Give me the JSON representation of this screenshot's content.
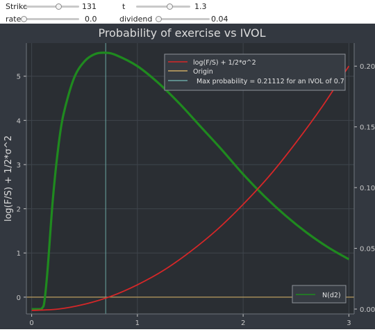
{
  "controls": {
    "strike": {
      "label": "Strike",
      "value": "131",
      "fraction": 0.62
    },
    "t": {
      "label": "t",
      "value": "1.3",
      "fraction": 0.62
    },
    "rate": {
      "label": "rate",
      "value": "0.0",
      "fraction": 0.0
    },
    "dividend": {
      "label": "dividend",
      "value": "0.04",
      "fraction": 0.05
    }
  },
  "chart_data": {
    "type": "line",
    "title": "Probability of exercise vs IVOL",
    "ylabel": "log(F/S) + 1/2*σ^2",
    "xlim": [
      -0.05,
      3.05
    ],
    "ylim": [
      -0.38,
      5.75
    ],
    "y2lim": [
      -0.004,
      0.219
    ],
    "xticks": [
      {
        "v": 0,
        "label": "0"
      },
      {
        "v": 1,
        "label": "1"
      },
      {
        "v": 2,
        "label": "2"
      },
      {
        "v": 3,
        "label": "3"
      }
    ],
    "yticks": [
      {
        "v": 0,
        "label": "0"
      },
      {
        "v": 1,
        "label": "1"
      },
      {
        "v": 2,
        "label": "2"
      },
      {
        "v": 3,
        "label": "3"
      },
      {
        "v": 4,
        "label": "4"
      },
      {
        "v": 5,
        "label": "5"
      }
    ],
    "y2ticks": [
      {
        "v": 0,
        "label": "0.00"
      },
      {
        "v": 0.05,
        "label": "0.05"
      },
      {
        "v": 0.1,
        "label": "0.10"
      },
      {
        "v": 0.15,
        "label": "0.15"
      },
      {
        "v": 0.2,
        "label": "0.20"
      }
    ],
    "grid": true,
    "colors": {
      "red": "#d62728",
      "green": "#1f8a1f",
      "origin": "#c8a862",
      "vline": "#6aa6a3"
    },
    "series": [
      {
        "name": "log(F/S) + 1/2*σ^2",
        "axis": "left",
        "x": [
          0,
          0.25,
          0.5,
          0.75,
          1.0,
          1.25,
          1.5,
          1.75,
          2.0,
          2.25,
          2.5,
          2.75,
          3.0
        ],
        "y": [
          -0.3,
          -0.27,
          -0.16,
          0.02,
          0.28,
          0.61,
          1.03,
          1.52,
          2.1,
          2.75,
          3.5,
          4.32,
          5.23
        ]
      },
      {
        "name": "N(d2)",
        "axis": "right",
        "x": [
          0,
          0.08,
          0.1,
          0.12,
          0.15,
          0.2,
          0.25,
          0.3,
          0.4,
          0.5,
          0.6,
          0.7,
          0.8,
          1.0,
          1.2,
          1.4,
          1.6,
          1.8,
          2.0,
          2.2,
          2.4,
          2.6,
          2.8,
          3.0
        ],
        "y": [
          0.0,
          0.0,
          0.001,
          0.006,
          0.032,
          0.09,
          0.132,
          0.16,
          0.19,
          0.204,
          0.21,
          0.211,
          0.209,
          0.2,
          0.186,
          0.169,
          0.15,
          0.131,
          0.111,
          0.093,
          0.077,
          0.063,
          0.051,
          0.041
        ]
      }
    ],
    "reference_lines": {
      "origin_y": 0,
      "max_x": 0.7
    },
    "legend_top": [
      {
        "label": "log(F/S) + 1/2*σ^2",
        "kind": "red"
      },
      {
        "label": "Origin",
        "kind": "origin"
      },
      {
        "label": "Max probability = 0.21112  for an IVOL of 0.7",
        "kind": "vline"
      }
    ],
    "legend_bottom": [
      {
        "label": "N(d2)",
        "kind": "green"
      }
    ]
  }
}
